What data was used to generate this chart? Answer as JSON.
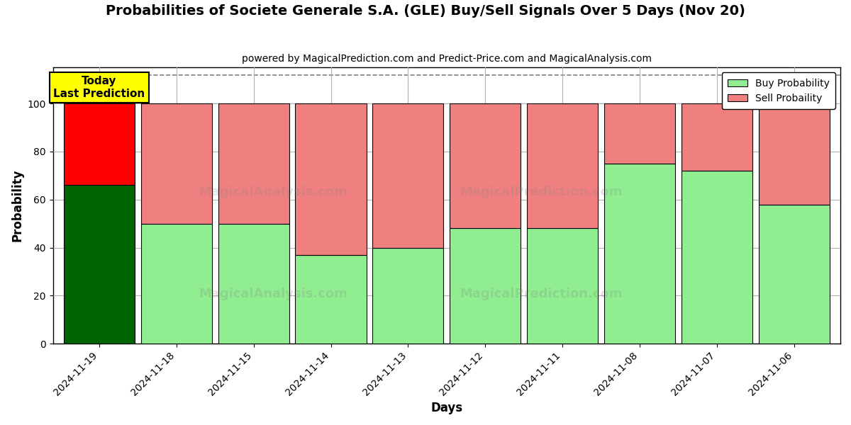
{
  "title": "Probabilities of Societe Generale S.A. (GLE) Buy/Sell Signals Over 5 Days (Nov 20)",
  "subtitle": "powered by MagicalPrediction.com and Predict-Price.com and MagicalAnalysis.com",
  "xlabel": "Days",
  "ylabel": "Probability",
  "dates": [
    "2024-11-19",
    "2024-11-18",
    "2024-11-15",
    "2024-11-14",
    "2024-11-13",
    "2024-11-12",
    "2024-11-11",
    "2024-11-08",
    "2024-11-07",
    "2024-11-06"
  ],
  "buy_values": [
    66,
    50,
    50,
    37,
    40,
    48,
    48,
    75,
    72,
    58
  ],
  "sell_values": [
    34,
    50,
    50,
    63,
    60,
    52,
    52,
    25,
    28,
    42
  ],
  "today_buy_color": "#006400",
  "today_sell_color": "#FF0000",
  "buy_color": "#90EE90",
  "sell_color": "#F08080",
  "today_label_bg": "#FFFF00",
  "today_label_text": "Today\nLast Prediction",
  "legend_buy": "Buy Probability",
  "legend_sell": "Sell Probaility",
  "ylim": [
    0,
    115
  ],
  "dashed_line_y": 112,
  "watermark_texts": [
    "MagicalAnalysis.com",
    "MagicalPrediction.com"
  ],
  "bar_edge_color": "#000000",
  "background_color": "#ffffff",
  "grid_color": "#b0b0b0"
}
